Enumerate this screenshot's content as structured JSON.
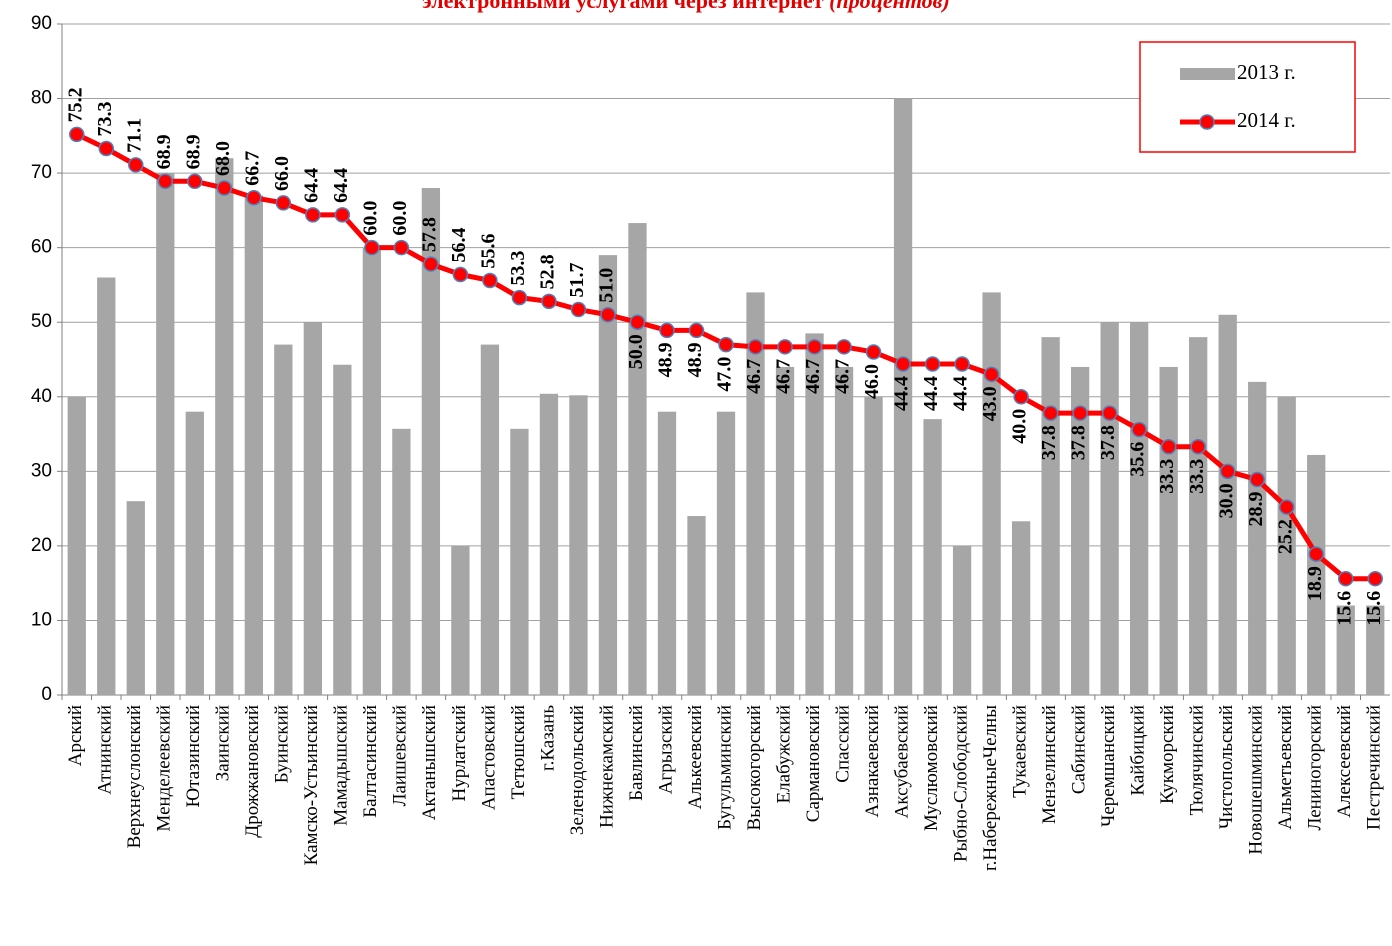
{
  "chart_data": {
    "type": "bar_line",
    "title": "электронными услугами через интернет",
    "subtitle": "(процентов)",
    "categories": [
      "Арский",
      "Атнинский",
      "Верхнеуслонский",
      "Менделеевский",
      "Ютазинский",
      "Заинский",
      "Дрожжановский",
      "Буинский",
      "Камско-Устьинский",
      "Мамадышский",
      "Балтасинский",
      "Лаишевский",
      "Актанышский",
      "Нурлатский",
      "Апастовский",
      "Тетюшский",
      "г.Казань",
      "Зеленодольский",
      "Нижнекамский",
      "Бавлинский",
      "Агрызский",
      "Алькеевский",
      "Бугульминский",
      "Высокогорский",
      "Елабужский",
      "Сармановский",
      "Спасский",
      "Азнакаевский",
      "Аксубаевский",
      "Муслюмовский",
      "Рыбно-Слободский",
      "г.НабережныеЧелны",
      "Тукаевский",
      "Мензелинский",
      "Сабинский",
      "Черемшанский",
      "Кайбицкий",
      "Кукморский",
      "Тюлячинский",
      "Чистопольский",
      "Новошешминский",
      "Альметьевский",
      "Лениногорский",
      "Алексеевский",
      "Пестречинский"
    ],
    "series": [
      {
        "name": "2013 г.",
        "type": "bar",
        "color": "#a6a6a6",
        "values": [
          40,
          56,
          26,
          70,
          38,
          72,
          67,
          47,
          50,
          44.3,
          60,
          35.7,
          68,
          20,
          47,
          35.7,
          40.4,
          40.2,
          59,
          63.3,
          38,
          24,
          38,
          54,
          44,
          48.5,
          44,
          40,
          80,
          37,
          20,
          54,
          23.3,
          48,
          44,
          50,
          50,
          44,
          48,
          51,
          42,
          40,
          32.2,
          12,
          12
        ]
      },
      {
        "name": "2014 г.",
        "type": "line",
        "color": "#ff0000",
        "marker_edge": "#4f81bd",
        "values": [
          75.2,
          73.3,
          71.1,
          68.9,
          68.9,
          68.0,
          66.7,
          66.0,
          64.4,
          64.4,
          60.0,
          60.0,
          57.8,
          56.4,
          55.6,
          53.3,
          52.8,
          51.7,
          51.0,
          50.0,
          48.9,
          48.9,
          47.0,
          46.7,
          46.7,
          46.7,
          46.7,
          46.0,
          44.4,
          44.4,
          44.4,
          43.0,
          40.0,
          37.8,
          37.8,
          37.8,
          35.6,
          33.3,
          33.3,
          30.0,
          28.9,
          25.2,
          18.9,
          15.6,
          15.6
        ],
        "value_labels": [
          "75.2",
          "73.3",
          "71.1",
          "68.9",
          "68.9",
          "68.0",
          "66.7",
          "66.0",
          "64.4",
          "64.4",
          "60.0",
          "60.0",
          "57.8",
          "56.4",
          "55.6",
          "53.3",
          "52.8",
          "51.7",
          "51.0",
          "50.0",
          "48.9",
          "48.9",
          "47.0",
          "46.7",
          "46.7",
          "46.7",
          "46.7",
          "46.0",
          "44.4",
          "44.4",
          "44.4",
          "43.0",
          "40.0",
          "37.8",
          "37.8",
          "37.8",
          "35.6",
          "33.3",
          "33.3",
          "30.0",
          "28.9",
          "25.2",
          "18.9",
          "15.6",
          "15.6"
        ]
      }
    ],
    "ylim": [
      0,
      90
    ],
    "yticks": [
      0,
      10,
      20,
      30,
      40,
      50,
      60,
      70,
      80,
      90
    ],
    "grid": true,
    "legend": "upper right"
  }
}
